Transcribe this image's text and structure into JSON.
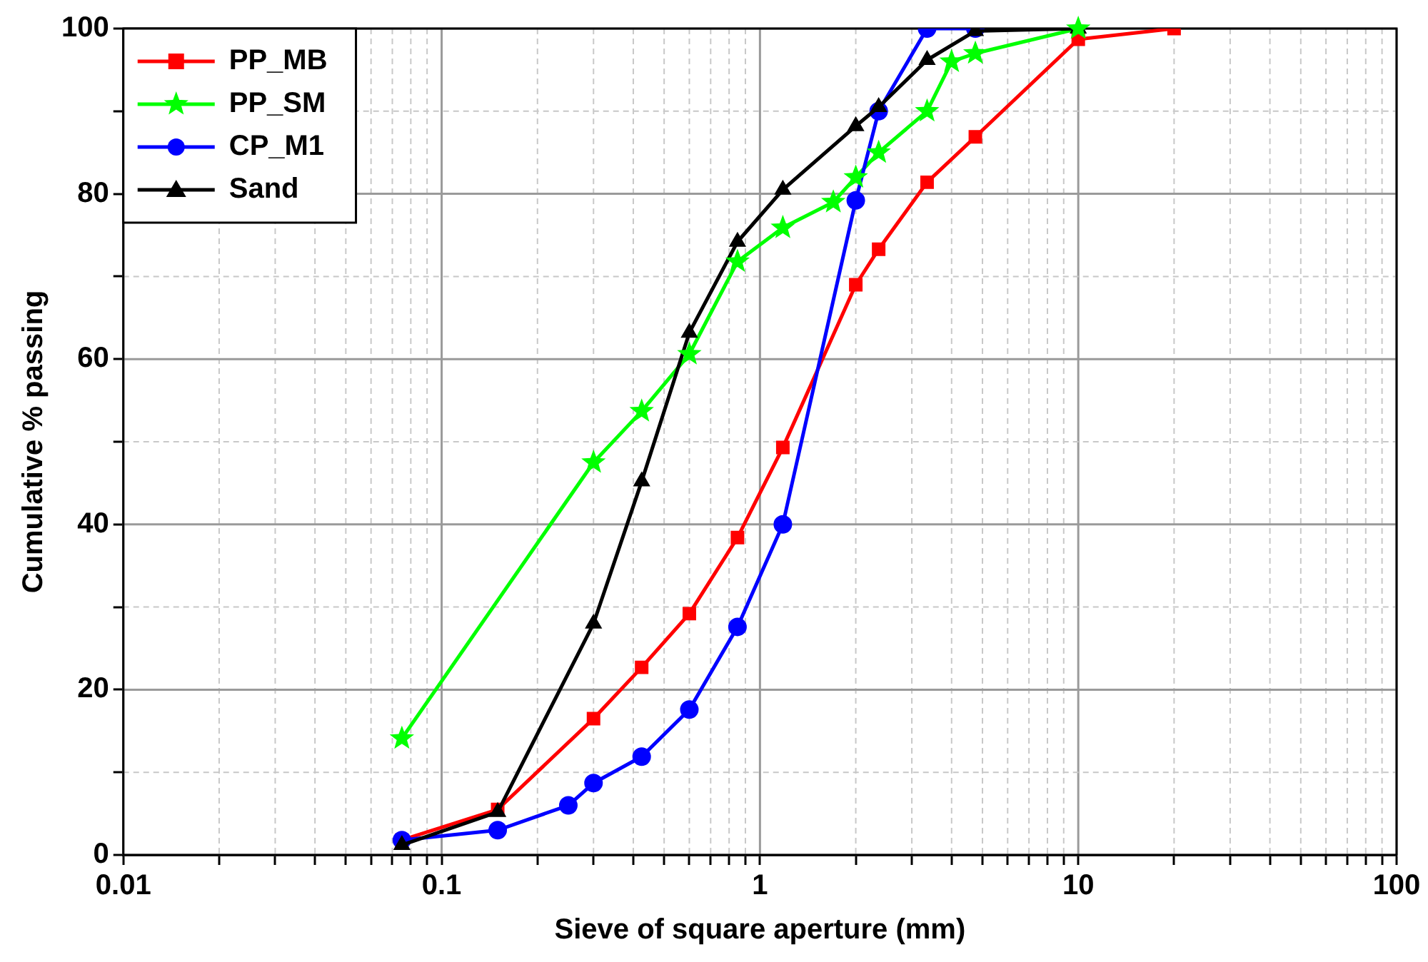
{
  "chart_data": {
    "type": "line",
    "xlabel": "Sieve of square aperture (mm)",
    "ylabel": "Cumulative % passing",
    "log": "x",
    "grid": true,
    "legend": "top left",
    "line_style": "solid",
    "xlim": [
      0.01,
      100
    ],
    "xticks": [
      0.01,
      {
        "value": 0.02,
        "label": null
      },
      {
        "value": 0.03,
        "label": null
      },
      {
        "value": 0.04,
        "label": null
      },
      {
        "value": 0.05,
        "label": null
      },
      {
        "value": 0.06,
        "label": null
      },
      {
        "value": 0.07,
        "label": null
      },
      {
        "value": 0.08,
        "label": null
      },
      {
        "value": 0.09,
        "label": null
      },
      0.1,
      {
        "value": 0.2,
        "label": null
      },
      {
        "value": 0.3,
        "label": null
      },
      {
        "value": 0.4,
        "label": null
      },
      {
        "value": 0.5,
        "label": null
      },
      {
        "value": 0.6,
        "label": null
      },
      {
        "value": 0.7,
        "label": null
      },
      {
        "value": 0.8,
        "label": null
      },
      {
        "value": 0.9,
        "label": null
      },
      1,
      {
        "value": 2,
        "label": null
      },
      {
        "value": 3,
        "label": null
      },
      {
        "value": 4,
        "label": null
      },
      {
        "value": 5,
        "label": null
      },
      {
        "value": 6,
        "label": null
      },
      {
        "value": 7,
        "label": null
      },
      {
        "value": 8,
        "label": null
      },
      {
        "value": 9,
        "label": null
      },
      10,
      {
        "value": 20,
        "label": null
      },
      {
        "value": 30,
        "label": null
      },
      {
        "value": 40,
        "label": null
      },
      {
        "value": 50,
        "label": null
      },
      {
        "value": 60,
        "label": null
      },
      {
        "value": 70,
        "label": null
      },
      {
        "value": 80,
        "label": null
      },
      {
        "value": 90,
        "label": null
      },
      100
    ],
    "ylim": [
      0,
      100
    ],
    "yticks": [
      0,
      {
        "value": 10,
        "label": null
      },
      20,
      {
        "value": 30,
        "label": null
      },
      40,
      {
        "value": 50,
        "label": null
      },
      60,
      {
        "value": 70,
        "label": null
      },
      80,
      {
        "value": 90,
        "label": null
      },
      100
    ],
    "series": [
      {
        "name": "PP_MB",
        "color": "#ff0000",
        "marker": "square",
        "x": [
          0.075,
          0.15,
          0.3,
          0.425,
          0.6,
          0.85,
          1.18,
          2,
          2.36,
          3.35,
          4.75,
          10,
          20
        ],
        "values": [
          1.8,
          5.5,
          16.5,
          22.7,
          29.2,
          38.4,
          49.3,
          69,
          73.3,
          81.4,
          86.9,
          98.7,
          100
        ]
      },
      {
        "name": "PP_SM",
        "color": "#00ff00",
        "marker": "star",
        "x": [
          0.075,
          0.3,
          0.425,
          0.6,
          0.85,
          1.18,
          1.7,
          2,
          2.36,
          3.35,
          4,
          4.75,
          10
        ],
        "values": [
          14.1,
          47.5,
          53.7,
          60.6,
          71.8,
          75.9,
          79,
          82,
          85,
          90,
          96,
          97,
          100
        ]
      },
      {
        "name": "CP_M1",
        "color": "#0000ff",
        "marker": "circle",
        "x": [
          0.075,
          0.15,
          0.25,
          0.3,
          0.425,
          0.6,
          0.85,
          1.18,
          2,
          2.36,
          3.35,
          4.75
        ],
        "values": [
          1.8,
          3,
          6,
          8.7,
          11.9,
          17.6,
          27.6,
          40,
          79.2,
          90,
          100,
          100
        ]
      },
      {
        "name": "Sand",
        "color": "#000000",
        "marker": "triangle",
        "x": [
          0.075,
          0.15,
          0.3,
          0.425,
          0.6,
          0.85,
          1.18,
          2,
          2.36,
          3.35,
          4.75,
          10
        ],
        "values": [
          1.2,
          5.2,
          28,
          45.2,
          63.2,
          74.2,
          80.5,
          88.2,
          90.5,
          96.2,
          99.7,
          100
        ]
      }
    ]
  }
}
